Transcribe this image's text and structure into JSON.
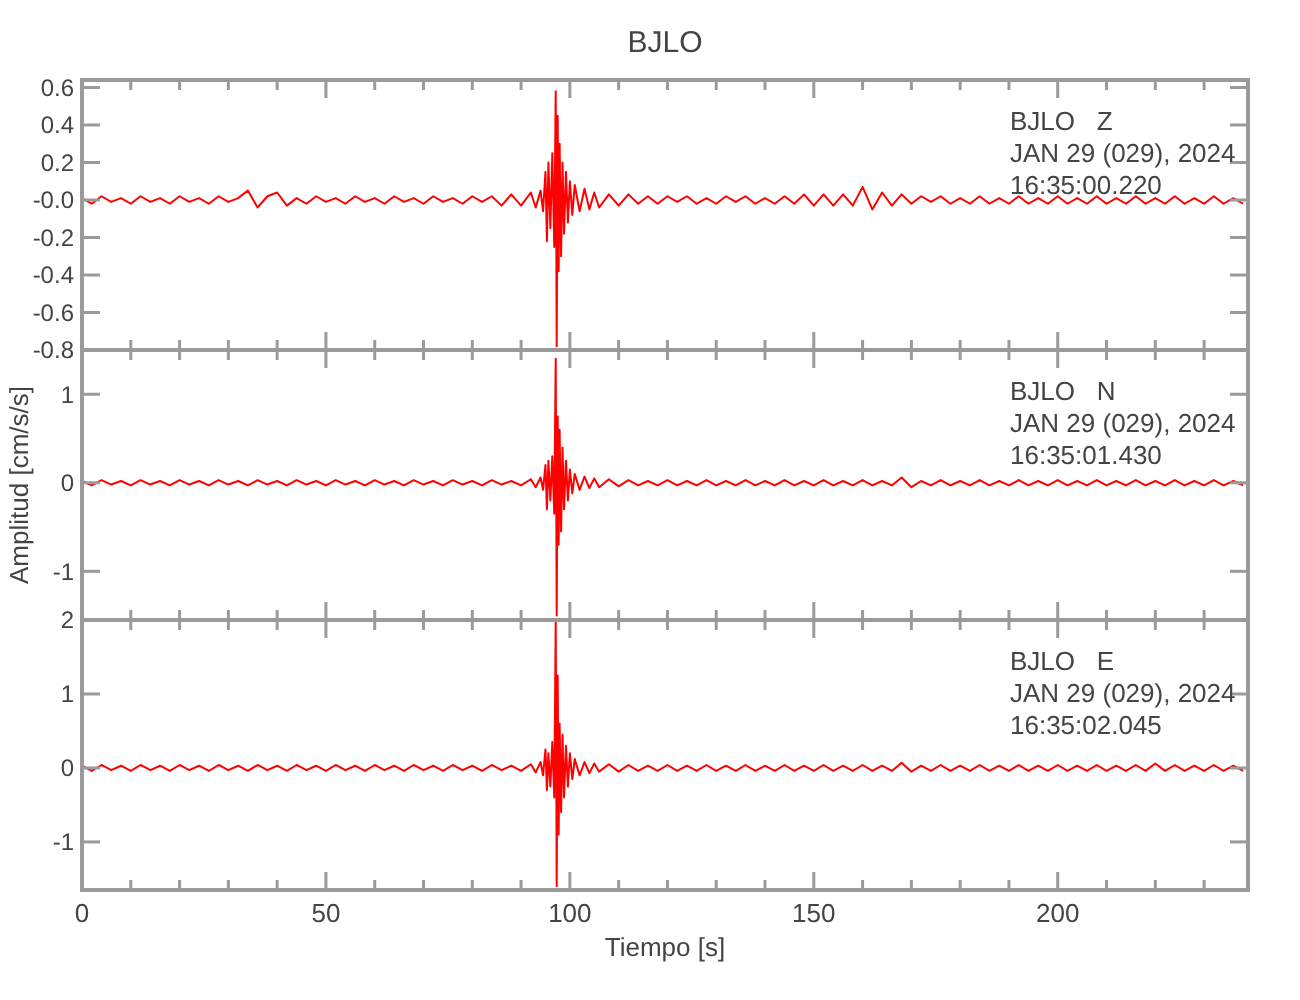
{
  "chart_data": [
    {
      "type": "line",
      "title": "BJLO",
      "annotations": [
        "BJLO   Z",
        "JAN 29 (029), 2024",
        "16:35:00.220"
      ],
      "xlim": [
        0,
        239
      ],
      "ylim": [
        -0.8,
        0.64
      ],
      "tick_labels": "y",
      "xticks": [
        0,
        {
          "value": 10,
          "label": null
        },
        {
          "value": 20,
          "label": null
        },
        {
          "value": 30,
          "label": null
        },
        {
          "value": 40,
          "label": null
        },
        50,
        {
          "value": 60,
          "label": null
        },
        {
          "value": 70,
          "label": null
        },
        {
          "value": 80,
          "label": null
        },
        {
          "value": 90,
          "label": null
        },
        100,
        {
          "value": 110,
          "label": null
        },
        {
          "value": 120,
          "label": null
        },
        {
          "value": 130,
          "label": null
        },
        {
          "value": 140,
          "label": null
        },
        150,
        {
          "value": 160,
          "label": null
        },
        {
          "value": 170,
          "label": null
        },
        {
          "value": 180,
          "label": null
        },
        {
          "value": 190,
          "label": null
        },
        200,
        {
          "value": 210,
          "label": null
        },
        {
          "value": 220,
          "label": null
        },
        {
          "value": 230,
          "label": null
        }
      ],
      "yticks": [
        0.6,
        0.4,
        0.2,
        {
          "value": 0,
          "label": "-0.0"
        },
        -0.2,
        -0.4,
        -0.6,
        -0.8
      ],
      "x": [
        0,
        2,
        4,
        6,
        8,
        10,
        12,
        14,
        16,
        18,
        20,
        22,
        24,
        26,
        28,
        30,
        32,
        34,
        36,
        38,
        40,
        42,
        44,
        46,
        48,
        50,
        52,
        54,
        56,
        58,
        60,
        62,
        64,
        66,
        68,
        70,
        72,
        74,
        76,
        78,
        80,
        82,
        84,
        86,
        88,
        90,
        92,
        93,
        94,
        94.5,
        95,
        95.3,
        95.6,
        96,
        96.4,
        96.8,
        97.1,
        97.3,
        97.5,
        97.7,
        97.9,
        98.2,
        98.5,
        98.8,
        99.2,
        99.6,
        100,
        100.5,
        101,
        102,
        103,
        104,
        105,
        106,
        108,
        110,
        112,
        114,
        116,
        118,
        120,
        122,
        124,
        126,
        128,
        130,
        132,
        134,
        136,
        138,
        140,
        142,
        144,
        146,
        148,
        150,
        152,
        154,
        156,
        158,
        160,
        162,
        164,
        166,
        168,
        170,
        172,
        174,
        176,
        178,
        180,
        182,
        184,
        186,
        188,
        190,
        192,
        194,
        196,
        198,
        200,
        202,
        204,
        206,
        208,
        210,
        212,
        214,
        216,
        218,
        220,
        222,
        224,
        226,
        228,
        230,
        232,
        234,
        236,
        238
      ],
      "series": [
        {
          "color": "#ff0000",
          "values": [
            0.01,
            -0.02,
            0.02,
            -0.01,
            0.01,
            -0.02,
            0.02,
            -0.01,
            0.01,
            -0.02,
            0.02,
            -0.01,
            0.01,
            -0.02,
            0.02,
            -0.01,
            0.01,
            0.05,
            -0.04,
            0.02,
            0.04,
            -0.03,
            0.01,
            -0.02,
            0.02,
            -0.01,
            0.01,
            -0.02,
            0.02,
            -0.01,
            0.01,
            -0.02,
            0.02,
            -0.01,
            0.01,
            -0.02,
            0.02,
            -0.01,
            0.01,
            -0.02,
            0.02,
            -0.01,
            0.02,
            -0.03,
            0.03,
            -0.03,
            0.04,
            -0.04,
            0.05,
            -0.06,
            0.15,
            -0.22,
            0.2,
            -0.15,
            0.25,
            -0.25,
            0.58,
            -0.78,
            0.45,
            -0.38,
            0.3,
            -0.3,
            0.2,
            -0.18,
            0.15,
            -0.12,
            0.1,
            -0.08,
            0.08,
            -0.06,
            0.06,
            -0.05,
            0.04,
            -0.04,
            0.03,
            -0.03,
            0.03,
            -0.02,
            0.02,
            -0.02,
            0.02,
            -0.01,
            0.02,
            -0.02,
            0.01,
            -0.02,
            0.02,
            -0.01,
            0.02,
            -0.02,
            0.01,
            -0.02,
            0.02,
            -0.02,
            0.03,
            -0.03,
            0.03,
            -0.03,
            0.03,
            -0.03,
            0.07,
            -0.05,
            0.04,
            -0.03,
            0.03,
            -0.02,
            0.02,
            -0.01,
            0.02,
            -0.02,
            0.01,
            -0.02,
            0.02,
            -0.02,
            0.01,
            -0.02,
            0.02,
            -0.02,
            0.01,
            -0.02,
            0.02,
            -0.02,
            0.01,
            -0.02,
            0.02,
            -0.02,
            0.01,
            -0.02,
            0.02,
            -0.02,
            0.01,
            -0.02,
            0.02,
            -0.02,
            0.01,
            -0.02,
            0.02,
            -0.02,
            0.01,
            -0.02
          ]
        }
      ]
    },
    {
      "type": "line",
      "ylabel": "Amplitud [cm/s/s]",
      "annotations": [
        "BJLO   N",
        "JAN 29 (029), 2024",
        "16:35:01.430"
      ],
      "xlim": [
        0,
        239
      ],
      "ylim": [
        -1.55,
        1.5
      ],
      "tick_labels": "y",
      "xticks": [
        0,
        {
          "value": 10,
          "label": null
        },
        {
          "value": 20,
          "label": null
        },
        {
          "value": 30,
          "label": null
        },
        {
          "value": 40,
          "label": null
        },
        50,
        {
          "value": 60,
          "label": null
        },
        {
          "value": 70,
          "label": null
        },
        {
          "value": 80,
          "label": null
        },
        {
          "value": 90,
          "label": null
        },
        100,
        {
          "value": 110,
          "label": null
        },
        {
          "value": 120,
          "label": null
        },
        {
          "value": 130,
          "label": null
        },
        {
          "value": 140,
          "label": null
        },
        150,
        {
          "value": 160,
          "label": null
        },
        {
          "value": 170,
          "label": null
        },
        {
          "value": 180,
          "label": null
        },
        {
          "value": 190,
          "label": null
        },
        200,
        {
          "value": 210,
          "label": null
        },
        {
          "value": 220,
          "label": null
        },
        {
          "value": 230,
          "label": null
        }
      ],
      "yticks": [
        1,
        0,
        -1
      ],
      "x": [
        0,
        2,
        4,
        6,
        8,
        10,
        12,
        14,
        16,
        18,
        20,
        22,
        24,
        26,
        28,
        30,
        32,
        34,
        36,
        38,
        40,
        42,
        44,
        46,
        48,
        50,
        52,
        54,
        56,
        58,
        60,
        62,
        64,
        66,
        68,
        70,
        72,
        74,
        76,
        78,
        80,
        82,
        84,
        86,
        88,
        90,
        92,
        93,
        94,
        94.5,
        95,
        95.3,
        95.6,
        96,
        96.4,
        96.8,
        97.1,
        97.3,
        97.5,
        97.7,
        97.9,
        98.2,
        98.5,
        98.8,
        99.2,
        99.6,
        100,
        100.5,
        101,
        102,
        103,
        104,
        105,
        106,
        108,
        110,
        112,
        114,
        116,
        118,
        120,
        122,
        124,
        126,
        128,
        130,
        132,
        134,
        136,
        138,
        140,
        142,
        144,
        146,
        148,
        150,
        152,
        154,
        156,
        158,
        160,
        162,
        164,
        166,
        168,
        170,
        172,
        174,
        176,
        178,
        180,
        182,
        184,
        186,
        188,
        190,
        192,
        194,
        196,
        198,
        200,
        202,
        204,
        206,
        208,
        210,
        212,
        214,
        216,
        218,
        220,
        222,
        224,
        226,
        228,
        230,
        232,
        234,
        236,
        238
      ],
      "series": [
        {
          "color": "#ff0000",
          "values": [
            0.02,
            -0.03,
            0.03,
            -0.02,
            0.02,
            -0.03,
            0.03,
            -0.02,
            0.02,
            -0.03,
            0.03,
            -0.02,
            0.02,
            -0.03,
            0.03,
            -0.02,
            0.02,
            -0.03,
            0.03,
            -0.02,
            0.02,
            -0.03,
            0.03,
            -0.02,
            0.02,
            -0.03,
            0.03,
            -0.02,
            0.02,
            -0.03,
            0.03,
            -0.02,
            0.02,
            -0.03,
            0.03,
            -0.02,
            0.02,
            -0.03,
            0.03,
            -0.02,
            0.02,
            -0.03,
            0.03,
            -0.02,
            0.02,
            -0.03,
            0.04,
            -0.05,
            0.06,
            -0.08,
            0.2,
            -0.3,
            0.25,
            -0.2,
            0.3,
            -0.35,
            1.4,
            -1.5,
            0.75,
            -0.7,
            0.6,
            -0.55,
            0.4,
            -0.3,
            0.25,
            -0.2,
            0.15,
            -0.12,
            0.1,
            -0.08,
            0.07,
            -0.06,
            0.05,
            -0.05,
            0.04,
            -0.04,
            0.03,
            -0.03,
            0.02,
            -0.03,
            0.03,
            -0.03,
            0.02,
            -0.03,
            0.03,
            -0.03,
            0.02,
            -0.03,
            0.03,
            -0.03,
            0.02,
            -0.03,
            0.03,
            -0.03,
            0.02,
            -0.03,
            0.03,
            -0.03,
            0.02,
            -0.03,
            0.03,
            -0.03,
            0.02,
            -0.03,
            0.06,
            -0.05,
            0.02,
            -0.03,
            0.03,
            -0.03,
            0.02,
            -0.03,
            0.03,
            -0.03,
            0.02,
            -0.03,
            0.03,
            -0.03,
            0.02,
            -0.03,
            0.03,
            -0.03,
            0.02,
            -0.03,
            0.03,
            -0.03,
            0.02,
            -0.03,
            0.03,
            -0.03,
            0.02,
            -0.03,
            0.03,
            -0.03,
            0.02,
            -0.03,
            0.03,
            -0.03,
            0.02,
            -0.03
          ]
        }
      ]
    },
    {
      "type": "line",
      "xlabel": "Tiempo [s]",
      "annotations": [
        "BJLO   E",
        "JAN 29 (029), 2024",
        "16:35:02.045"
      ],
      "xlim": [
        0,
        239
      ],
      "ylim": [
        -1.65,
        2.0
      ],
      "xticks": [
        0,
        {
          "value": 10,
          "label": null
        },
        {
          "value": 20,
          "label": null
        },
        {
          "value": 30,
          "label": null
        },
        {
          "value": 40,
          "label": null
        },
        50,
        {
          "value": 60,
          "label": null
        },
        {
          "value": 70,
          "label": null
        },
        {
          "value": 80,
          "label": null
        },
        {
          "value": 90,
          "label": null
        },
        100,
        {
          "value": 110,
          "label": null
        },
        {
          "value": 120,
          "label": null
        },
        {
          "value": 130,
          "label": null
        },
        {
          "value": 140,
          "label": null
        },
        150,
        {
          "value": 160,
          "label": null
        },
        {
          "value": 170,
          "label": null
        },
        {
          "value": 180,
          "label": null
        },
        {
          "value": 190,
          "label": null
        },
        200,
        {
          "value": 210,
          "label": null
        },
        {
          "value": 220,
          "label": null
        },
        {
          "value": 230,
          "label": null
        }
      ],
      "yticks": [
        2,
        1,
        0,
        -1
      ],
      "x": [
        0,
        2,
        4,
        6,
        8,
        10,
        12,
        14,
        16,
        18,
        20,
        22,
        24,
        26,
        28,
        30,
        32,
        34,
        36,
        38,
        40,
        42,
        44,
        46,
        48,
        50,
        52,
        54,
        56,
        58,
        60,
        62,
        64,
        66,
        68,
        70,
        72,
        74,
        76,
        78,
        80,
        82,
        84,
        86,
        88,
        90,
        92,
        93,
        94,
        94.5,
        95,
        95.3,
        95.6,
        96,
        96.4,
        96.8,
        97.1,
        97.3,
        97.5,
        97.7,
        97.9,
        98.2,
        98.5,
        98.8,
        99.2,
        99.6,
        100,
        100.5,
        101,
        102,
        103,
        104,
        105,
        106,
        108,
        110,
        112,
        114,
        116,
        118,
        120,
        122,
        124,
        126,
        128,
        130,
        132,
        134,
        136,
        138,
        140,
        142,
        144,
        146,
        148,
        150,
        152,
        154,
        156,
        158,
        160,
        162,
        164,
        166,
        168,
        170,
        172,
        174,
        176,
        178,
        180,
        182,
        184,
        186,
        188,
        190,
        192,
        194,
        196,
        198,
        200,
        202,
        204,
        206,
        208,
        210,
        212,
        214,
        216,
        218,
        220,
        222,
        224,
        226,
        228,
        230,
        232,
        234,
        236,
        238
      ],
      "series": [
        {
          "color": "#ff0000",
          "values": [
            0.03,
            -0.04,
            0.04,
            -0.03,
            0.03,
            -0.04,
            0.04,
            -0.03,
            0.03,
            -0.04,
            0.04,
            -0.03,
            0.03,
            -0.04,
            0.04,
            -0.03,
            0.03,
            -0.04,
            0.04,
            -0.03,
            0.03,
            -0.04,
            0.04,
            -0.03,
            0.03,
            -0.04,
            0.04,
            -0.03,
            0.03,
            -0.04,
            0.04,
            -0.03,
            0.03,
            -0.04,
            0.04,
            -0.03,
            0.03,
            -0.04,
            0.04,
            -0.03,
            0.03,
            -0.04,
            0.04,
            -0.03,
            0.03,
            -0.04,
            0.05,
            -0.06,
            0.08,
            -0.1,
            0.25,
            -0.3,
            0.2,
            -0.25,
            0.35,
            -0.4,
            2.0,
            -1.6,
            1.25,
            -0.9,
            0.6,
            -0.6,
            0.45,
            -0.4,
            0.3,
            -0.25,
            0.2,
            -0.15,
            0.12,
            -0.1,
            0.08,
            -0.07,
            0.06,
            -0.05,
            0.05,
            -0.05,
            0.04,
            -0.04,
            0.03,
            -0.04,
            0.04,
            -0.04,
            0.03,
            -0.04,
            0.04,
            -0.04,
            0.03,
            -0.04,
            0.04,
            -0.04,
            0.03,
            -0.04,
            0.04,
            -0.04,
            0.03,
            -0.04,
            0.04,
            -0.04,
            0.03,
            -0.04,
            0.04,
            -0.04,
            0.03,
            -0.04,
            0.07,
            -0.05,
            0.03,
            -0.04,
            0.04,
            -0.04,
            0.03,
            -0.04,
            0.04,
            -0.04,
            0.03,
            -0.04,
            0.04,
            -0.04,
            0.03,
            -0.04,
            0.04,
            -0.04,
            0.03,
            -0.04,
            0.04,
            -0.04,
            0.03,
            -0.04,
            0.04,
            -0.04,
            0.06,
            -0.04,
            0.04,
            -0.04,
            0.03,
            -0.04,
            0.04,
            -0.04,
            0.03,
            -0.04
          ]
        }
      ]
    }
  ]
}
